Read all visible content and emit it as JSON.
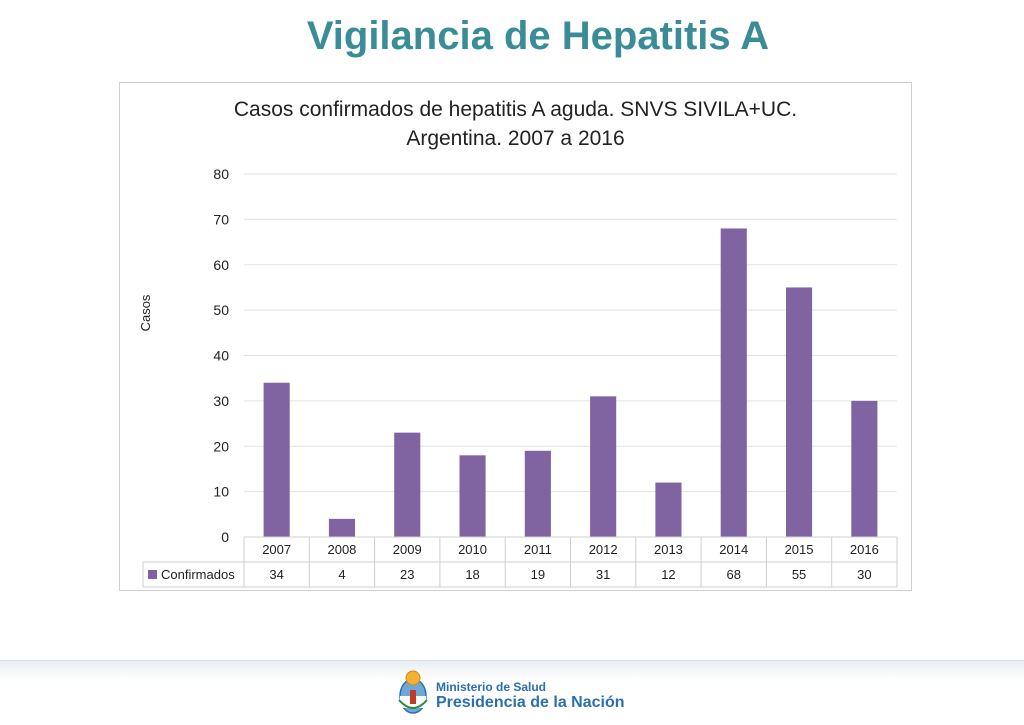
{
  "page": {
    "title": "Vigilancia de Hepatitis A"
  },
  "chart_data": {
    "type": "bar",
    "title_lines": [
      "Casos confirmados de hepatitis A aguda. SNVS SIVILA+UC.",
      "Argentina. 2007 a 2016"
    ],
    "ylabel": "Casos",
    "xlabel": "",
    "ylim": [
      0,
      80
    ],
    "yticks": [
      0,
      10,
      20,
      30,
      40,
      50,
      60,
      70,
      80
    ],
    "grid": true,
    "categories": [
      "2007",
      "2008",
      "2009",
      "2010",
      "2011",
      "2012",
      "2013",
      "2014",
      "2015",
      "2016"
    ],
    "series": [
      {
        "name": "Confirmados",
        "values": [
          34,
          4,
          23,
          18,
          19,
          31,
          12,
          68,
          55,
          30
        ],
        "color": "#8064a2"
      }
    ],
    "data_table": true
  },
  "footer": {
    "line1": "Ministerio de Salud",
    "line2": "Presidencia de la Nación",
    "logo": "coat-of-arms-icon"
  }
}
